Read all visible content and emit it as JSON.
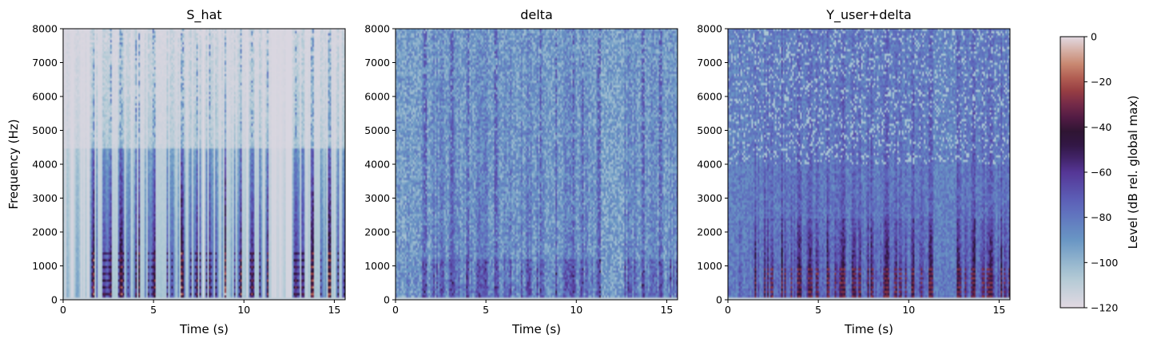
{
  "chart_data": [
    {
      "type": "heatmap",
      "title": "S_hat",
      "xlabel": "Time (s)",
      "ylabel": "Frequency (Hz)",
      "xlim": [
        0,
        15.6
      ],
      "ylim": [
        0,
        8000
      ],
      "xticks": [
        0,
        5,
        10,
        15
      ],
      "yticks": [
        0,
        1000,
        2000,
        3000,
        4000,
        5000,
        6000,
        7000,
        8000
      ],
      "colorscale": "twilight (dB)",
      "description_of_energy": "mostly quiet (light) with dark speech harmonics below ~4500 Hz; silent gaps near 1 s, 11.5-12.5 s"
    },
    {
      "type": "heatmap",
      "title": "delta",
      "xlabel": "Time (s)",
      "ylabel": "",
      "xlim": [
        0,
        15.6
      ],
      "ylim": [
        0,
        8000
      ],
      "xticks": [
        0,
        5,
        10,
        15
      ],
      "yticks": [
        0,
        1000,
        2000,
        3000,
        4000,
        5000,
        6000,
        7000,
        8000
      ],
      "colorscale": "twilight (dB)"
    },
    {
      "type": "heatmap",
      "title": "Y_user+delta",
      "xlabel": "Time (s)",
      "ylabel": "",
      "xlim": [
        0,
        15.6
      ],
      "ylim": [
        0,
        8000
      ],
      "xticks": [
        0,
        5,
        10,
        15
      ],
      "yticks": [
        0,
        1000,
        2000,
        3000,
        4000,
        5000,
        6000,
        7000,
        8000
      ],
      "colorscale": "twilight (dB)"
    }
  ],
  "colorbar": {
    "label": "Level (dB rel. global max)",
    "range": [
      -120,
      0
    ],
    "ticks": [
      0,
      -20,
      -40,
      -60,
      -80,
      -100,
      -120
    ]
  },
  "colors": {
    "cmap": [
      "#e2d9e2",
      "#9ebbc9",
      "#6276ba",
      "#5a3b9c",
      "#2e1538",
      "#6b2a55",
      "#ad5144",
      "#d0a48e",
      "#e2d9e2"
    ]
  }
}
